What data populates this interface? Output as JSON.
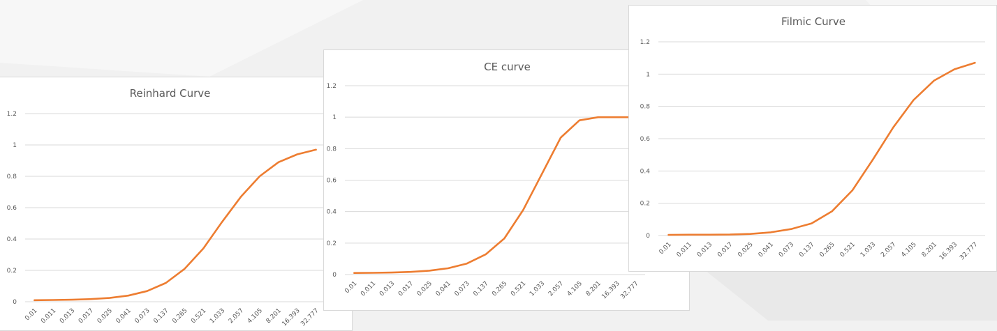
{
  "colors": {
    "background": "#f1f1f1",
    "card": "#ffffff",
    "series": "#ed7d31",
    "grid": "#d9d9d9",
    "text": "#595959"
  },
  "chart_data": [
    {
      "type": "line",
      "title": "Reinhard Curve",
      "xlabel": "",
      "ylabel": "",
      "ylim": [
        0,
        1.2
      ],
      "yticks": [
        "0",
        "0.2",
        "0.4",
        "0.6",
        "0.8",
        "1",
        "1.2"
      ],
      "grid": true,
      "legend": "none",
      "categories": [
        "0.01",
        "0.011",
        "0.013",
        "0.017",
        "0.025",
        "0.041",
        "0.073",
        "0.137",
        "0.265",
        "0.521",
        "1.033",
        "2.057",
        "4.105",
        "8.201",
        "16.393",
        "32.777"
      ],
      "series": [
        {
          "color": "#ed7d31",
          "values": [
            0.01,
            0.011,
            0.013,
            0.017,
            0.024,
            0.039,
            0.068,
            0.12,
            0.21,
            0.34,
            0.51,
            0.67,
            0.8,
            0.89,
            0.94,
            0.97
          ]
        }
      ]
    },
    {
      "type": "line",
      "title": "CE curve",
      "xlabel": "",
      "ylabel": "",
      "ylim": [
        0,
        1.2
      ],
      "yticks": [
        "0",
        "0.2",
        "0.4",
        "0.6",
        "0.8",
        "1",
        "1.2"
      ],
      "grid": true,
      "legend": "none",
      "categories": [
        "0.01",
        "0.011",
        "0.013",
        "0.017",
        "0.025",
        "0.041",
        "0.073",
        "0.137",
        "0.265",
        "0.521",
        "1.033",
        "2.057",
        "4.105",
        "8.201",
        "16.393",
        "32.777"
      ],
      "series": [
        {
          "color": "#ed7d31",
          "values": [
            0.01,
            0.011,
            0.013,
            0.017,
            0.025,
            0.04,
            0.07,
            0.128,
            0.23,
            0.41,
            0.64,
            0.87,
            0.98,
            1.0,
            1.0,
            1.0
          ]
        }
      ]
    },
    {
      "type": "line",
      "title": "Filmic Curve",
      "xlabel": "",
      "ylabel": "",
      "ylim": [
        0,
        1.2
      ],
      "yticks": [
        "0",
        "0.2",
        "0.4",
        "0.6",
        "0.8",
        "1",
        "1.2"
      ],
      "grid": true,
      "legend": "none",
      "categories": [
        "0.01",
        "0.011",
        "0.013",
        "0.017",
        "0.025",
        "0.041",
        "0.073",
        "0.137",
        "0.265",
        "0.521",
        "1.033",
        "2.057",
        "4.105",
        "8.201",
        "16.393",
        "32.777"
      ],
      "series": [
        {
          "color": "#ed7d31",
          "values": [
            0.004,
            0.005,
            0.005,
            0.006,
            0.01,
            0.02,
            0.04,
            0.075,
            0.15,
            0.28,
            0.47,
            0.67,
            0.84,
            0.96,
            1.03,
            1.07
          ]
        }
      ]
    }
  ]
}
